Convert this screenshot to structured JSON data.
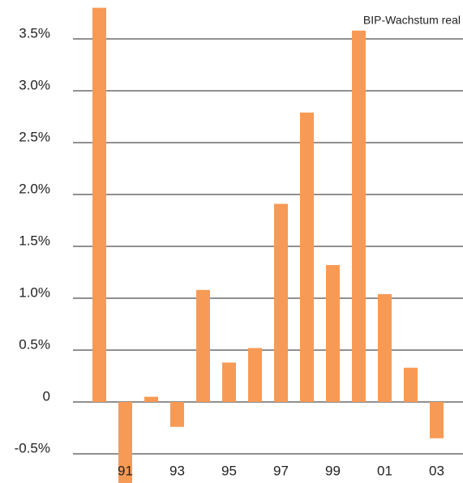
{
  "chart_data": {
    "type": "bar",
    "title": "BIP-Wachstum real",
    "categories": [
      null,
      "91",
      null,
      "93",
      null,
      "95",
      null,
      "97",
      null,
      "99",
      null,
      "01",
      null,
      "03"
    ],
    "values": [
      3.8,
      -0.8,
      0.05,
      -0.24,
      1.08,
      0.38,
      0.52,
      1.91,
      2.79,
      1.32,
      3.58,
      1.04,
      0.33,
      -0.35
    ],
    "color": "#f79a55",
    "ylim": [
      -0.8,
      3.9
    ],
    "yticks": [
      {
        "value": -0.5,
        "label": "-0.5%"
      },
      0,
      {
        "value": 0.5,
        "label": "0.5%"
      },
      {
        "value": 1.0,
        "label": "1.0%"
      },
      {
        "value": 1.5,
        "label": "1.5%"
      },
      {
        "value": 2.0,
        "label": "2.0%"
      },
      {
        "value": 2.5,
        "label": "2.5%"
      },
      {
        "value": 3.0,
        "label": "3.0%"
      },
      {
        "value": 3.5,
        "label": "3.5%"
      }
    ],
    "grid": true
  }
}
